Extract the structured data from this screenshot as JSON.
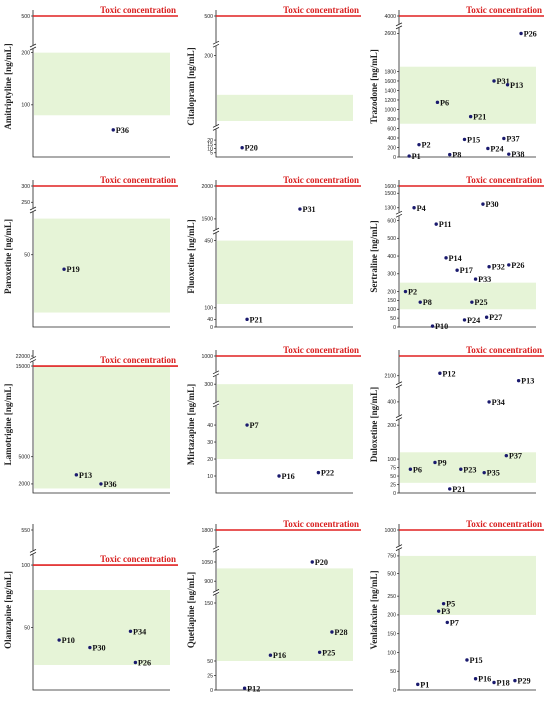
{
  "chart_data": [
    {
      "type": "scatter",
      "ylabel": "Amitriptyline [ng/mL]",
      "toxic": {
        "label": "Toxic concentration",
        "value": 500
      },
      "therapeutic_range": [
        80,
        200
      ],
      "yticks": [
        500,
        200,
        100
      ],
      "segments": [
        {
          "range": [
            0,
            200
          ],
          "frac": [
            0,
            0.74
          ]
        },
        {
          "range": [
            400,
            500
          ],
          "frac": [
            0.82,
            1.0
          ]
        }
      ],
      "breaks": [
        0.78
      ],
      "points": [
        {
          "label": "P36",
          "x": 0.62,
          "y": 52
        }
      ]
    },
    {
      "type": "scatter",
      "ylabel": "Citalopram [ng/mL]",
      "toxic": {
        "label": "Toxic concentration",
        "value": 500
      },
      "therapeutic_range": [
        50,
        110
      ],
      "yticks": [
        500,
        200,
        20,
        15,
        10,
        5
      ],
      "segments": [
        {
          "range": [
            0,
            30
          ],
          "frac": [
            0,
            0.18
          ]
        },
        {
          "range": [
            45,
            210
          ],
          "frac": [
            0.24,
            0.75
          ]
        },
        {
          "range": [
            400,
            500
          ],
          "frac": [
            0.85,
            1.0
          ]
        }
      ],
      "breaks": [
        0.21,
        0.8
      ],
      "points": [
        {
          "label": "P20",
          "x": 0.18,
          "y": 11
        }
      ]
    },
    {
      "type": "scatter",
      "ylabel": "Trazodone [ng/mL]",
      "toxic": {
        "label": "Toxic concentration",
        "value": 4000
      },
      "therapeutic_range": [
        700,
        1900
      ],
      "yticks": [
        4000,
        2600,
        1800,
        1600,
        1400,
        1200,
        1000,
        800,
        600,
        400,
        200,
        0
      ],
      "segments": [
        {
          "range": [
            0,
            2700
          ],
          "frac": [
            0,
            0.91
          ]
        },
        {
          "range": [
            3800,
            4000
          ],
          "frac": [
            0.95,
            1.0
          ]
        }
      ],
      "breaks": [
        0.93
      ],
      "points": [
        {
          "label": "P1",
          "x": 0.05,
          "y": 20
        },
        {
          "label": "P2",
          "x": 0.13,
          "y": 260
        },
        {
          "label": "P6",
          "x": 0.28,
          "y": 1150
        },
        {
          "label": "P8",
          "x": 0.38,
          "y": 50
        },
        {
          "label": "P21",
          "x": 0.55,
          "y": 850
        },
        {
          "label": "P15",
          "x": 0.5,
          "y": 370
        },
        {
          "label": "P31",
          "x": 0.74,
          "y": 1600
        },
        {
          "label": "P13",
          "x": 0.85,
          "y": 1520
        },
        {
          "label": "P37",
          "x": 0.82,
          "y": 390
        },
        {
          "label": "P24",
          "x": 0.69,
          "y": 180
        },
        {
          "label": "P38",
          "x": 0.86,
          "y": 60
        },
        {
          "label": "P26",
          "x": 0.96,
          "y": 2600
        }
      ]
    },
    {
      "type": "scatter",
      "ylabel": "Paroxetine [ng/mL]",
      "toxic": {
        "label": "Toxic concentration",
        "value": 300
      },
      "therapeutic_range": [
        10,
        75
      ],
      "yticks": [
        300,
        250,
        50
      ],
      "segments": [
        {
          "range": [
            0,
            80
          ],
          "frac": [
            0,
            0.82
          ]
        },
        {
          "range": [
            235,
            300
          ],
          "frac": [
            0.85,
            1.0
          ]
        }
      ],
      "breaks": [
        0.83
      ],
      "points": [
        {
          "label": "P19",
          "x": 0.22,
          "y": 40
        }
      ]
    },
    {
      "type": "scatter",
      "ylabel": "Fluoxetine [ng/mL]",
      "toxic": {
        "label": "Toxic concentration",
        "value": 2000
      },
      "therapeutic_range": [
        120,
        450
      ],
      "yticks": [
        2000,
        1500,
        450,
        100,
        40,
        0
      ],
      "segments": [
        {
          "range": [
            0,
            470
          ],
          "frac": [
            0,
            0.64
          ]
        },
        {
          "range": [
            1400,
            2000
          ],
          "frac": [
            0.72,
            1.0
          ]
        }
      ],
      "breaks": [
        0.68
      ],
      "points": [
        {
          "label": "P21",
          "x": 0.22,
          "y": 40
        },
        {
          "label": "P31",
          "x": 0.65,
          "y": 1650
        }
      ]
    },
    {
      "type": "scatter",
      "ylabel": "Sertraline [ng/mL]",
      "toxic": {
        "label": "Toxic concentration",
        "value": 1600
      },
      "therapeutic_range": [
        100,
        250
      ],
      "yticks": [
        1600,
        1500,
        1300,
        600,
        500,
        400,
        300,
        200,
        150,
        100,
        50,
        0
      ],
      "segments": [
        {
          "range": [
            0,
            620
          ],
          "frac": [
            0,
            0.78
          ]
        },
        {
          "range": [
            1250,
            1600
          ],
          "frac": [
            0.82,
            1.0
          ]
        }
      ],
      "breaks": [
        0.8
      ],
      "points": [
        {
          "label": "P4",
          "x": 0.09,
          "y": 1300
        },
        {
          "label": "P30",
          "x": 0.65,
          "y": 1350
        },
        {
          "label": "P11",
          "x": 0.27,
          "y": 580
        },
        {
          "label": "P14",
          "x": 0.35,
          "y": 390
        },
        {
          "label": "P17",
          "x": 0.44,
          "y": 320
        },
        {
          "label": "P32",
          "x": 0.7,
          "y": 340
        },
        {
          "label": "P26",
          "x": 0.86,
          "y": 350
        },
        {
          "label": "P33",
          "x": 0.59,
          "y": 270
        },
        {
          "label": "P2",
          "x": 0.02,
          "y": 200
        },
        {
          "label": "P8",
          "x": 0.14,
          "y": 140
        },
        {
          "label": "P25",
          "x": 0.56,
          "y": 140
        },
        {
          "label": "P10",
          "x": 0.24,
          "y": 5
        },
        {
          "label": "P24",
          "x": 0.5,
          "y": 40
        },
        {
          "label": "P27",
          "x": 0.68,
          "y": 55
        }
      ]
    },
    {
      "type": "scatter",
      "ylabel": "Lamotrigine [ng/mL]",
      "toxic": {
        "label": "Toxic concentration",
        "value": 15000
      },
      "therapeutic_range": [
        1500,
        15000
      ],
      "yticks": [
        22000,
        15000,
        5000,
        2000
      ],
      "segments": [
        {
          "range": [
            1000,
            15500
          ],
          "frac": [
            0,
            0.96
          ]
        },
        {
          "range": [
            21500,
            22000
          ],
          "frac": [
            0.99,
            1.0
          ]
        }
      ],
      "breaks": [
        0.975
      ],
      "points": [
        {
          "label": "P13",
          "x": 0.32,
          "y": 3000
        },
        {
          "label": "P36",
          "x": 0.52,
          "y": 2000
        }
      ]
    },
    {
      "type": "scatter",
      "ylabel": "Mirtazapine [ng/mL]",
      "toxic": {
        "label": "Toxic concentration",
        "value": 1000
      },
      "therapeutic_range": [
        20,
        300
      ],
      "yticks": [
        1000,
        300,
        40,
        30,
        20,
        10
      ],
      "segments": [
        {
          "range": [
            0,
            50
          ],
          "frac": [
            0,
            0.62
          ]
        },
        {
          "range": [
            250,
            320
          ],
          "frac": [
            0.68,
            0.84
          ]
        },
        {
          "range": [
            950,
            1000
          ],
          "frac": [
            0.9,
            1.0
          ]
        }
      ],
      "breaks": [
        0.65,
        0.87
      ],
      "points": [
        {
          "label": "P7",
          "x": 0.22,
          "y": 40
        },
        {
          "label": "P16",
          "x": 0.48,
          "y": 10
        },
        {
          "label": "P22",
          "x": 0.8,
          "y": 12
        }
      ]
    },
    {
      "type": "scatter",
      "ylabel": "Duloxetine [ng/mL]",
      "toxic": {
        "label": "Toxic concentration",
        "value": 2500
      },
      "therapeutic_range": [
        30,
        120
      ],
      "yticks": [
        2100,
        400,
        200,
        100,
        75,
        50,
        25,
        0
      ],
      "segments": [
        {
          "range": [
            0,
            210
          ],
          "frac": [
            0,
            0.52
          ]
        },
        {
          "range": [
            300,
            500
          ],
          "frac": [
            0.58,
            0.75
          ]
        },
        {
          "range": [
            2000,
            2500
          ],
          "frac": [
            0.82,
            1.0
          ]
        }
      ],
      "breaks": [
        0.55,
        0.79
      ],
      "points": [
        {
          "label": "P12",
          "x": 0.3,
          "y": 2150
        },
        {
          "label": "P13",
          "x": 0.94,
          "y": 2000
        },
        {
          "label": "P34",
          "x": 0.7,
          "y": 400
        },
        {
          "label": "P37",
          "x": 0.84,
          "y": 110
        },
        {
          "label": "P9",
          "x": 0.26,
          "y": 90
        },
        {
          "label": "P6",
          "x": 0.06,
          "y": 70
        },
        {
          "label": "P23",
          "x": 0.47,
          "y": 70
        },
        {
          "label": "P35",
          "x": 0.66,
          "y": 60
        },
        {
          "label": "P21",
          "x": 0.38,
          "y": 12
        }
      ]
    },
    {
      "type": "scatter",
      "ylabel": "Olanzapine [ng/mL]",
      "toxic": {
        "label": "Toxic concentration",
        "value": 100
      },
      "therapeutic_range": [
        20,
        80
      ],
      "yticks": [
        550,
        100,
        50
      ],
      "segments": [
        {
          "range": [
            0,
            105
          ],
          "frac": [
            0,
            0.82
          ]
        },
        {
          "range": [
            530,
            550
          ],
          "frac": [
            0.9,
            1.0
          ]
        }
      ],
      "breaks": [
        0.86
      ],
      "points": [
        {
          "label": "P10",
          "x": 0.18,
          "y": 40
        },
        {
          "label": "P34",
          "x": 0.76,
          "y": 47
        },
        {
          "label": "P30",
          "x": 0.43,
          "y": 34
        },
        {
          "label": "P26",
          "x": 0.8,
          "y": 22
        }
      ]
    },
    {
      "type": "scatter",
      "ylabel": "Quetiapine [ng/mL]",
      "toxic": {
        "label": "Toxic concentration",
        "value": 1800
      },
      "therapeutic_range": [
        50,
        1000
      ],
      "yticks": [
        1800,
        1050,
        900,
        150,
        50,
        25,
        0
      ],
      "segments": [
        {
          "range": [
            0,
            160
          ],
          "frac": [
            0,
            0.58
          ]
        },
        {
          "range": [
            850,
            1100
          ],
          "frac": [
            0.64,
            0.84
          ]
        },
        {
          "range": [
            1750,
            1800
          ],
          "frac": [
            0.92,
            1.0
          ]
        }
      ],
      "breaks": [
        0.61,
        0.88
      ],
      "points": [
        {
          "label": "P20",
          "x": 0.75,
          "y": 1050
        },
        {
          "label": "P28",
          "x": 0.91,
          "y": 100
        },
        {
          "label": "P16",
          "x": 0.41,
          "y": 60
        },
        {
          "label": "P25",
          "x": 0.81,
          "y": 65
        },
        {
          "label": "P12",
          "x": 0.2,
          "y": 3
        }
      ]
    },
    {
      "type": "scatter",
      "ylabel": "Venlafaxine [ng/mL]",
      "toxic": {
        "label": "Toxic concentration",
        "value": 1000
      },
      "therapeutic_range": [
        200,
        750
      ],
      "yticks": [
        1000,
        750,
        500,
        250,
        200,
        150,
        100,
        50,
        0
      ],
      "segments": [
        {
          "range": [
            0,
            260
          ],
          "frac": [
            0,
            0.61
          ]
        },
        {
          "range": [
            300,
            800
          ],
          "frac": [
            0.64,
            0.86
          ]
        },
        {
          "range": [
            950,
            1000
          ],
          "frac": [
            0.92,
            1.0
          ]
        }
      ],
      "breaks": [
        0.89
      ],
      "points": [
        {
          "label": "P1",
          "x": 0.12,
          "y": 15
        },
        {
          "label": "P5",
          "x": 0.33,
          "y": 230
        },
        {
          "label": "P3",
          "x": 0.29,
          "y": 210
        },
        {
          "label": "P7",
          "x": 0.36,
          "y": 180
        },
        {
          "label": "P15",
          "x": 0.52,
          "y": 80
        },
        {
          "label": "P16",
          "x": 0.59,
          "y": 30
        },
        {
          "label": "P18",
          "x": 0.74,
          "y": 20
        },
        {
          "label": "P29",
          "x": 0.91,
          "y": 25
        }
      ]
    }
  ]
}
